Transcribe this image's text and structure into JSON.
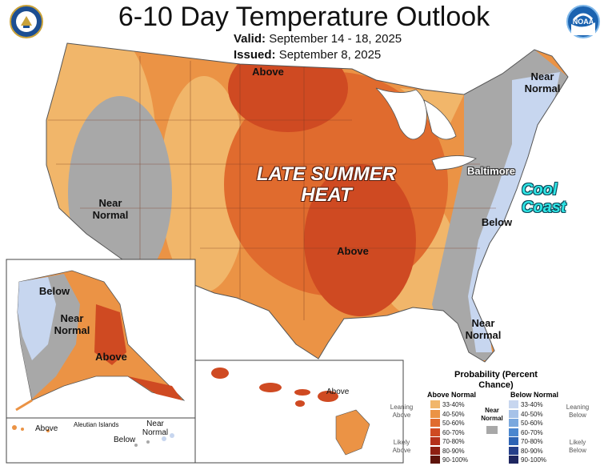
{
  "header": {
    "title": "6-10 Day Temperature Outlook",
    "valid_label": "Valid:",
    "valid_value": "September 14 - 18, 2025",
    "issued_label": "Issued:",
    "issued_value": "September 8, 2025",
    "left_logo": "doc-seal-logo",
    "right_logo": "noaa-logo",
    "noaa_text": "NOAA"
  },
  "map_labels": {
    "above_north": "Above",
    "near_normal_ne": "Near Normal",
    "near_normal_west": "Near Normal",
    "late_summer_heat": "LATE SUMMER HEAT",
    "above_south": "Above",
    "baltimore": "Baltimore",
    "cool_coast": "Cool Coast",
    "below_east": "Below",
    "near_normal_fl": "Near Normal"
  },
  "alaska": {
    "below": "Below",
    "near_normal": "Near Normal",
    "above": "Above",
    "above_aleutian": "Above",
    "aleutian_islands": "Aleutian Islands",
    "near_normal_aleutian": "Near Normal",
    "below_aleutian": "Below"
  },
  "hawaii": {
    "above": "Above"
  },
  "legend": {
    "title": "Probability (Percent Chance)",
    "above_header": "Above Normal",
    "below_header": "Below Normal",
    "near_normal": "Near Normal",
    "leaning_above": "Leaning Above",
    "likely_above": "Likely Above",
    "leaning_below": "Leaning Below",
    "likely_below": "Likely Below",
    "above": [
      {
        "range": "33-40%",
        "color": "#f1b66a"
      },
      {
        "range": "40-50%",
        "color": "#eb9345"
      },
      {
        "range": "50-60%",
        "color": "#e06b2e"
      },
      {
        "range": "60-70%",
        "color": "#cf4a22"
      },
      {
        "range": "70-80%",
        "color": "#b5301a"
      },
      {
        "range": "80-90%",
        "color": "#8e1f12"
      },
      {
        "range": "90-100%",
        "color": "#5e130b"
      }
    ],
    "below": [
      {
        "range": "33-40%",
        "color": "#c7d6ef"
      },
      {
        "range": "40-50%",
        "color": "#a6c2e8"
      },
      {
        "range": "50-60%",
        "color": "#7aa8de"
      },
      {
        "range": "60-70%",
        "color": "#4a86cf"
      },
      {
        "range": "70-80%",
        "color": "#2d63b4"
      },
      {
        "range": "80-90%",
        "color": "#253f8a"
      },
      {
        "range": "90-100%",
        "color": "#1e2660"
      }
    ],
    "near_normal_color": "#a8a8a8"
  }
}
